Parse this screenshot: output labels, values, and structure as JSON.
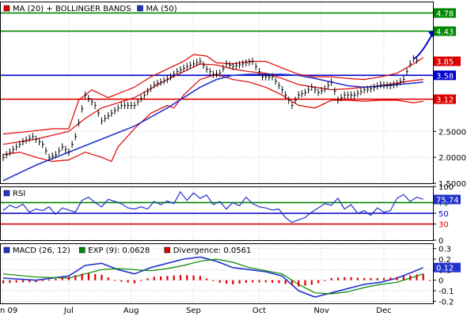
{
  "chart_data": [
    {
      "type": "line",
      "panel": "price",
      "legend": [
        {
          "label": "MA (20) + BOLLINGER BANDS",
          "color": "#e00000"
        },
        {
          "label": "MA (50)",
          "color": "#2233cc"
        }
      ],
      "ylim": [
        1.5,
        5.0
      ],
      "ytick_values": [
        1.5,
        2.0,
        2.5
      ],
      "ytick_labels": [
        "1.5000",
        "2.0000",
        "2.5000"
      ],
      "x_labels": [
        "n 09",
        "Jul",
        "Aug",
        "Sep",
        "Oct",
        "Nov",
        "Dec"
      ],
      "x_label_positions": [
        0,
        20,
        39,
        58,
        78,
        97,
        116
      ],
      "n_points": 130,
      "series": [
        {
          "name": "MA (20)",
          "color": "#e00000",
          "x": [
            0,
            10,
            20,
            25,
            30,
            40,
            50,
            60,
            65,
            70,
            75,
            80,
            85,
            90,
            95,
            100,
            105,
            110,
            115,
            120,
            125,
            128
          ],
          "values": [
            2.25,
            2.35,
            2.5,
            2.75,
            2.95,
            3.15,
            3.5,
            3.8,
            3.78,
            3.7,
            3.65,
            3.62,
            3.52,
            3.4,
            3.35,
            3.3,
            3.32,
            3.35,
            3.38,
            3.43,
            3.48,
            3.5
          ]
        },
        {
          "name": "Bollinger Upper",
          "color": "#e00000",
          "x": [
            0,
            8,
            15,
            20,
            23,
            27,
            32,
            40,
            45,
            50,
            55,
            58,
            62,
            65,
            70,
            75,
            80,
            85,
            90,
            95,
            100,
            105,
            110,
            115,
            120,
            125,
            128
          ],
          "values": [
            2.45,
            2.5,
            2.55,
            2.55,
            3.1,
            3.3,
            3.15,
            3.35,
            3.55,
            3.7,
            3.85,
            3.98,
            3.95,
            3.82,
            3.8,
            3.85,
            3.85,
            3.72,
            3.6,
            3.55,
            3.55,
            3.52,
            3.5,
            3.55,
            3.62,
            3.8,
            3.92
          ]
        },
        {
          "name": "Bollinger Lower",
          "color": "#e00000",
          "x": [
            0,
            5,
            10,
            15,
            20,
            25,
            30,
            33,
            35,
            40,
            45,
            50,
            52,
            55,
            60,
            65,
            70,
            75,
            80,
            85,
            90,
            95,
            100,
            105,
            110,
            115,
            120,
            125,
            128
          ],
          "values": [
            2.05,
            2.1,
            2.0,
            1.92,
            1.95,
            2.1,
            2.0,
            1.92,
            2.2,
            2.55,
            2.85,
            3.0,
            2.95,
            3.2,
            3.5,
            3.6,
            3.5,
            3.45,
            3.35,
            3.2,
            3.0,
            2.95,
            3.1,
            3.1,
            3.08,
            3.1,
            3.1,
            3.05,
            3.08
          ]
        },
        {
          "name": "MA (50)",
          "color": "#2233cc",
          "x": [
            0,
            10,
            20,
            30,
            40,
            50,
            55,
            60,
            65,
            70,
            75,
            80,
            85,
            90,
            95,
            100,
            105,
            110,
            115,
            120,
            125,
            128
          ],
          "values": [
            1.55,
            1.85,
            2.1,
            2.35,
            2.6,
            2.95,
            3.15,
            3.35,
            3.5,
            3.58,
            3.6,
            3.6,
            3.6,
            3.58,
            3.52,
            3.45,
            3.38,
            3.35,
            3.37,
            3.4,
            3.43,
            3.45
          ]
        },
        {
          "name": "Price",
          "color": "#000000",
          "x": [
            0,
            3,
            6,
            9,
            12,
            14,
            16,
            18,
            20,
            22,
            25,
            28,
            30,
            33,
            36,
            40,
            43,
            46,
            50,
            53,
            56,
            60,
            62,
            64,
            66,
            68,
            70,
            73,
            76,
            79,
            82,
            85,
            88,
            90,
            92,
            94,
            96,
            98,
            100,
            102,
            104,
            107,
            110,
            112,
            115,
            118,
            120,
            122,
            124,
            125,
            127
          ],
          "values": [
            2.0,
            2.15,
            2.3,
            2.4,
            2.25,
            2.0,
            2.05,
            2.2,
            2.1,
            2.4,
            3.2,
            3.0,
            2.7,
            2.85,
            3.0,
            3.0,
            3.2,
            3.4,
            3.5,
            3.65,
            3.75,
            3.85,
            3.7,
            3.6,
            3.62,
            3.8,
            3.75,
            3.8,
            3.85,
            3.55,
            3.55,
            3.3,
            3.0,
            3.2,
            3.25,
            3.35,
            3.25,
            3.32,
            3.45,
            3.1,
            3.2,
            3.2,
            3.3,
            3.32,
            3.4,
            3.38,
            3.42,
            3.5,
            3.8,
            3.9,
            3.85
          ]
        }
      ],
      "hlines": [
        {
          "value": 4.78,
          "color": "#008800",
          "label": "4.78"
        },
        {
          "value": 4.43,
          "color": "#008800",
          "label": "4.43"
        },
        {
          "value": 3.58,
          "color": "#0000cc",
          "label": "3.58"
        },
        {
          "value": 3.12,
          "color": "#dd0000",
          "label": "3.12"
        }
      ],
      "tags": [
        {
          "value": 3.85,
          "label": "3.85",
          "color": "#dd0000"
        }
      ],
      "arrow": {
        "from": [
          125,
          3.9
        ],
        "to": [
          131,
          4.4
        ],
        "color": "#0000cc"
      }
    },
    {
      "type": "line",
      "panel": "rsi",
      "legend": [
        {
          "label": "RSI",
          "color": "#2233cc"
        }
      ],
      "ylim": [
        0,
        100
      ],
      "ytick_values": [
        0,
        100
      ],
      "ytick_labels": [
        "0",
        "100"
      ],
      "series": [
        {
          "name": "RSI",
          "color": "#2233cc",
          "x": [
            0,
            2,
            4,
            6,
            8,
            10,
            12,
            14,
            16,
            18,
            20,
            22,
            24,
            26,
            28,
            30,
            32,
            34,
            36,
            38,
            40,
            42,
            44,
            46,
            48,
            50,
            52,
            54,
            56,
            58,
            60,
            62,
            64,
            66,
            68,
            70,
            72,
            74,
            76,
            78,
            80,
            82,
            84,
            86,
            88,
            90,
            92,
            94,
            96,
            98,
            100,
            102,
            104,
            106,
            108,
            110,
            112,
            114,
            116,
            118,
            120,
            122,
            124,
            126,
            128
          ],
          "values": [
            55,
            65,
            60,
            67,
            52,
            58,
            55,
            62,
            48,
            60,
            56,
            52,
            74,
            80,
            70,
            62,
            76,
            72,
            68,
            60,
            58,
            62,
            58,
            72,
            66,
            73,
            68,
            90,
            74,
            88,
            78,
            84,
            66,
            72,
            58,
            70,
            64,
            80,
            68,
            62,
            60,
            56,
            58,
            42,
            33,
            38,
            42,
            52,
            60,
            68,
            65,
            78,
            58,
            66,
            50,
            55,
            46,
            60,
            52,
            55,
            78,
            85,
            72,
            80,
            76
          ]
        }
      ],
      "hlines": [
        {
          "value": 70,
          "color": "#008800",
          "label": "70"
        },
        {
          "value": 50,
          "color": "#0000cc",
          "label": "50"
        },
        {
          "value": 30,
          "color": "#dd0000",
          "label": "30"
        }
      ],
      "tags": [
        {
          "value": 75.74,
          "label": "75.74",
          "color": "#2233cc"
        }
      ]
    },
    {
      "type": "line",
      "panel": "macd",
      "legend": [
        {
          "label": "MACD (26, 12)",
          "color": "#2233cc"
        },
        {
          "label": "EXP (9): 0.0628",
          "color": "#008800"
        },
        {
          "label": "Divergence: 0.0561",
          "color": "#dd0000"
        }
      ],
      "ylim": [
        -0.22,
        0.35
      ],
      "ytick_values": [
        -0.2,
        -0.1,
        0,
        0.1,
        0.2,
        0.3
      ],
      "ytick_labels": [
        "-0.2",
        "-0.1",
        "0",
        "0.1",
        "0.2",
        "0.3"
      ],
      "series": [
        {
          "name": "MACD",
          "color": "#2233cc",
          "x": [
            0,
            10,
            20,
            25,
            30,
            35,
            40,
            45,
            50,
            55,
            60,
            65,
            70,
            75,
            80,
            85,
            90,
            95,
            100,
            105,
            110,
            115,
            120,
            125,
            128
          ],
          "values": [
            0.02,
            0.0,
            0.04,
            0.14,
            0.16,
            0.1,
            0.06,
            0.12,
            0.16,
            0.2,
            0.22,
            0.18,
            0.12,
            0.1,
            0.08,
            0.04,
            -0.1,
            -0.16,
            -0.12,
            -0.08,
            -0.04,
            -0.02,
            0.02,
            0.08,
            0.12
          ]
        },
        {
          "name": "EXP (9)",
          "color": "#008800",
          "x": [
            0,
            10,
            20,
            25,
            30,
            35,
            40,
            45,
            50,
            55,
            60,
            65,
            70,
            75,
            80,
            85,
            90,
            95,
            100,
            105,
            110,
            115,
            120,
            125,
            128
          ],
          "values": [
            0.06,
            0.03,
            0.02,
            0.06,
            0.1,
            0.11,
            0.1,
            0.09,
            0.11,
            0.14,
            0.18,
            0.2,
            0.17,
            0.12,
            0.09,
            0.06,
            -0.04,
            -0.12,
            -0.13,
            -0.11,
            -0.07,
            -0.04,
            -0.02,
            0.03,
            0.06
          ]
        },
        {
          "name": "Divergence",
          "color": "#dd0000",
          "kind": "bar",
          "x": [
            0,
            5,
            10,
            15,
            20,
            25,
            30,
            35,
            40,
            45,
            50,
            55,
            60,
            65,
            70,
            75,
            80,
            85,
            90,
            95,
            100,
            105,
            110,
            115,
            120,
            125,
            128
          ],
          "values": [
            -0.03,
            -0.02,
            -0.02,
            0.01,
            0.03,
            0.07,
            0.05,
            -0.01,
            -0.03,
            0.03,
            0.04,
            0.05,
            0.04,
            -0.02,
            -0.04,
            -0.02,
            -0.02,
            -0.03,
            -0.06,
            -0.04,
            0.02,
            0.03,
            0.02,
            0.02,
            0.03,
            0.05,
            0.06
          ]
        }
      ],
      "tags": [
        {
          "value": 0.12,
          "label": "0.12",
          "color": "#2233cc"
        }
      ]
    }
  ]
}
